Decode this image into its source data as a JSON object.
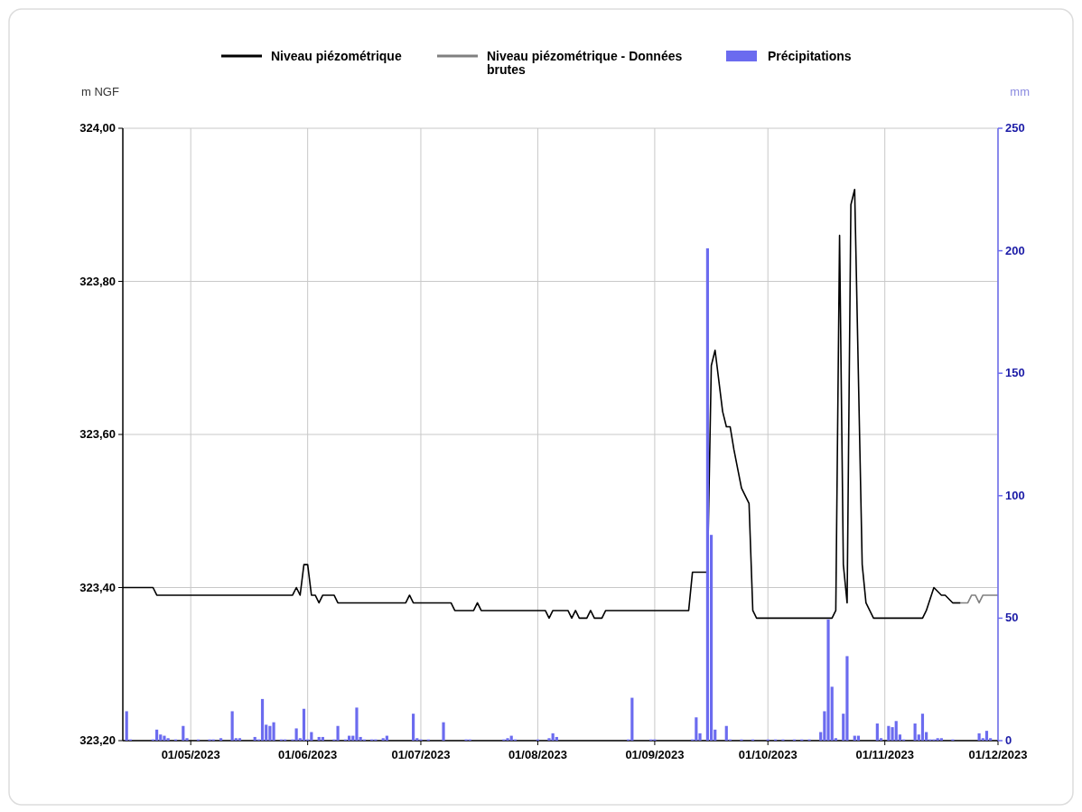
{
  "chart_data": {
    "type": "line",
    "ylabel": "m NGF",
    "y2label": "mm",
    "legend": "top",
    "grid": true,
    "xlim": [
      "2023-04-13",
      "2023-12-01"
    ],
    "xticks": [
      {
        "value": "2023-05-01",
        "label": "01/05/2023"
      },
      {
        "value": "2023-06-01",
        "label": "01/06/2023"
      },
      {
        "value": "2023-07-01",
        "label": "01/07/2023"
      },
      {
        "value": "2023-08-01",
        "label": "01/08/2023"
      },
      {
        "value": "2023-09-01",
        "label": "01/09/2023"
      },
      {
        "value": "2023-10-01",
        "label": "01/10/2023"
      },
      {
        "value": "2023-11-01",
        "label": "01/11/2023"
      },
      {
        "value": "2023-12-01",
        "label": "01/12/2023"
      }
    ],
    "ylim": [
      323.2,
      324
    ],
    "yticks": [
      {
        "value": 323.2,
        "label": "323,20"
      },
      {
        "value": 323.4,
        "label": "323,40"
      },
      {
        "value": 323.6,
        "label": "323,60"
      },
      {
        "value": 323.8,
        "label": "323,80"
      },
      {
        "value": 324,
        "label": "324,00"
      }
    ],
    "y2lim": [
      0,
      250
    ],
    "y2ticks": [
      0,
      50,
      100,
      150,
      200,
      250
    ],
    "series": [
      {
        "name": "Niveau piézométrique",
        "color": "#000000",
        "x": [
          "2023-04-13",
          "2023-04-21",
          "2023-04-22",
          "2023-05-28",
          "2023-05-29",
          "2023-05-30",
          "2023-05-31",
          "2023-06-01",
          "2023-06-02",
          "2023-06-03",
          "2023-06-04",
          "2023-06-05",
          "2023-06-08",
          "2023-06-09",
          "2023-06-27",
          "2023-06-28",
          "2023-06-29",
          "2023-07-09",
          "2023-07-10",
          "2023-07-15",
          "2023-07-16",
          "2023-07-17",
          "2023-08-03",
          "2023-08-04",
          "2023-08-05",
          "2023-08-09",
          "2023-08-10",
          "2023-08-11",
          "2023-08-12",
          "2023-08-14",
          "2023-08-15",
          "2023-08-16",
          "2023-08-18",
          "2023-08-19",
          "2023-09-10",
          "2023-09-11",
          "2023-09-15",
          "2023-09-16",
          "2023-09-17",
          "2023-09-19",
          "2023-09-20",
          "2023-09-21",
          "2023-09-22",
          "2023-09-24",
          "2023-09-26",
          "2023-09-27",
          "2023-09-28",
          "2023-10-18",
          "2023-10-19",
          "2023-10-20",
          "2023-10-21",
          "2023-10-22",
          "2023-10-23",
          "2023-10-24",
          "2023-10-26",
          "2023-10-27",
          "2023-10-29",
          "2023-11-11",
          "2023-11-12",
          "2023-11-14",
          "2023-11-16",
          "2023-11-17",
          "2023-11-19",
          "2023-11-21"
        ],
        "values": [
          323.4,
          323.4,
          323.39,
          323.39,
          323.4,
          323.39,
          323.43,
          323.43,
          323.39,
          323.39,
          323.38,
          323.39,
          323.39,
          323.38,
          323.38,
          323.39,
          323.38,
          323.38,
          323.37,
          323.37,
          323.38,
          323.37,
          323.37,
          323.36,
          323.37,
          323.37,
          323.36,
          323.37,
          323.36,
          323.36,
          323.37,
          323.36,
          323.36,
          323.37,
          323.37,
          323.42,
          323.42,
          323.69,
          323.71,
          323.63,
          323.61,
          323.61,
          323.58,
          323.53,
          323.51,
          323.37,
          323.36,
          323.36,
          323.37,
          323.86,
          323.43,
          323.38,
          323.9,
          323.92,
          323.43,
          323.38,
          323.36,
          323.36,
          323.37,
          323.4,
          323.39,
          323.39,
          323.38,
          323.38
        ]
      },
      {
        "name": "Niveau piézométrique - Données brutes",
        "color": "#808080",
        "x": [
          "2023-11-19",
          "2023-11-23",
          "2023-11-24",
          "2023-11-25",
          "2023-11-26",
          "2023-11-27",
          "2023-12-01"
        ],
        "values": [
          323.38,
          323.38,
          323.39,
          323.39,
          323.38,
          323.39,
          323.39
        ]
      },
      {
        "name": "Précipitations",
        "type": "bar",
        "axis": "y2",
        "color": "#6b6bef",
        "x": [
          "2023-04-14",
          "2023-04-15",
          "2023-04-21",
          "2023-04-22",
          "2023-04-23",
          "2023-04-24",
          "2023-04-25",
          "2023-04-27",
          "2023-04-29",
          "2023-04-30",
          "2023-05-03",
          "2023-05-06",
          "2023-05-07",
          "2023-05-09",
          "2023-05-12",
          "2023-05-13",
          "2023-05-14",
          "2023-05-18",
          "2023-05-19",
          "2023-05-20",
          "2023-05-21",
          "2023-05-22",
          "2023-05-23",
          "2023-05-25",
          "2023-05-26",
          "2023-05-28",
          "2023-05-29",
          "2023-05-30",
          "2023-05-31",
          "2023-06-01",
          "2023-06-02",
          "2023-06-04",
          "2023-06-05",
          "2023-06-08",
          "2023-06-09",
          "2023-06-11",
          "2023-06-12",
          "2023-06-13",
          "2023-06-14",
          "2023-06-15",
          "2023-06-16",
          "2023-06-18",
          "2023-06-19",
          "2023-06-21",
          "2023-06-22",
          "2023-06-29",
          "2023-06-30",
          "2023-07-01",
          "2023-07-03",
          "2023-07-07",
          "2023-07-13",
          "2023-07-14",
          "2023-07-23",
          "2023-07-24",
          "2023-07-25",
          "2023-07-26",
          "2023-08-01",
          "2023-08-04",
          "2023-08-05",
          "2023-08-06",
          "2023-08-25",
          "2023-08-26",
          "2023-08-31",
          "2023-09-01",
          "2023-09-11",
          "2023-09-12",
          "2023-09-13",
          "2023-09-15",
          "2023-09-16",
          "2023-09-17",
          "2023-09-20",
          "2023-09-21",
          "2023-09-24",
          "2023-09-27",
          "2023-10-01",
          "2023-10-03",
          "2023-10-05",
          "2023-10-08",
          "2023-10-10",
          "2023-10-12",
          "2023-10-15",
          "2023-10-16",
          "2023-10-17",
          "2023-10-18",
          "2023-10-19",
          "2023-10-21",
          "2023-10-22",
          "2023-10-24",
          "2023-10-25",
          "2023-10-30",
          "2023-10-31",
          "2023-11-02",
          "2023-11-03",
          "2023-11-04",
          "2023-11-05",
          "2023-11-06",
          "2023-11-09",
          "2023-11-10",
          "2023-11-11",
          "2023-11-12",
          "2023-11-13",
          "2023-11-14",
          "2023-11-15",
          "2023-11-16",
          "2023-11-19",
          "2023-11-26",
          "2023-11-27",
          "2023-11-28",
          "2023-11-29"
        ],
        "values": [
          12,
          0.5,
          0.5,
          4.5,
          2.5,
          2,
          1,
          0.5,
          6,
          1,
          0.5,
          0.5,
          0.5,
          1,
          12,
          1,
          1,
          1.5,
          0.5,
          17,
          6.5,
          6,
          7.5,
          0.5,
          0.5,
          0.5,
          5,
          1,
          13,
          0.5,
          3.5,
          1.5,
          1.5,
          0.5,
          6,
          0.5,
          2,
          2,
          13.5,
          1.5,
          0.5,
          0.5,
          0.5,
          1,
          2,
          11,
          1,
          0.5,
          0.5,
          7.5,
          0.5,
          0.5,
          0.5,
          1,
          2,
          0.5,
          0.5,
          1,
          3,
          1.5,
          0.5,
          17.5,
          0.5,
          0.5,
          0.5,
          9.5,
          3,
          201,
          84,
          4.5,
          6,
          0.5,
          0.5,
          0.5,
          0.5,
          0.5,
          0.5,
          0.5,
          0.5,
          0.5,
          3.5,
          12,
          49.5,
          22,
          1,
          11,
          34.5,
          2,
          2,
          7,
          1,
          6,
          5.5,
          8,
          2.5,
          0.5,
          7,
          2.5,
          11,
          3.5,
          0.5,
          0.5,
          1,
          1,
          0.5,
          3,
          1,
          4,
          1
        ]
      }
    ]
  }
}
